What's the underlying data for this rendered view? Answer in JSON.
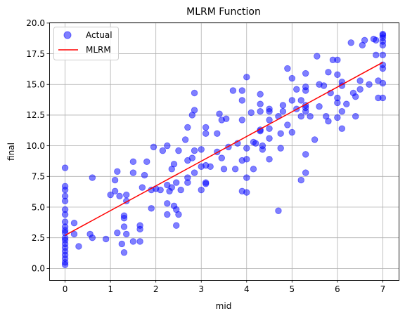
{
  "chart_data": {
    "type": "scatter",
    "title": "MLRM Function",
    "xlabel": "mid",
    "ylabel": "final",
    "xlim": [
      -0.35,
      7.35
    ],
    "ylim": [
      -0.95,
      20.05
    ],
    "xticks": [
      0,
      1,
      2,
      3,
      4,
      5,
      6,
      7
    ],
    "yticks": [
      0.0,
      2.5,
      5.0,
      7.5,
      10.0,
      12.5,
      15.0,
      17.5,
      20.0
    ],
    "xtick_labels": [
      "0",
      "1",
      "2",
      "3",
      "4",
      "5",
      "6",
      "7"
    ],
    "ytick_labels": [
      "0.0",
      "2.5",
      "5.0",
      "7.5",
      "10.0",
      "12.5",
      "15.0",
      "17.5",
      "20.0"
    ],
    "grid": true,
    "legend": {
      "placement": "top-left",
      "entries": [
        "Actual",
        "MLRM"
      ]
    },
    "series": [
      {
        "name": "Actual",
        "type": "scatter",
        "color": "#0000ff",
        "opacity": 0.5,
        "points": [
          [
            0,
            0.3
          ],
          [
            0,
            0.5
          ],
          [
            0,
            0.8
          ],
          [
            0,
            1.1
          ],
          [
            0,
            1.4
          ],
          [
            0,
            1.7
          ],
          [
            0,
            2.0
          ],
          [
            0,
            2.3
          ],
          [
            0,
            2.5
          ],
          [
            0,
            2.9
          ],
          [
            0,
            3.1
          ],
          [
            0,
            3.4
          ],
          [
            0,
            3.8
          ],
          [
            0,
            4.4
          ],
          [
            0,
            4.8
          ],
          [
            0,
            5.5
          ],
          [
            0,
            5.9
          ],
          [
            0,
            6.4
          ],
          [
            0,
            6.7
          ],
          [
            0,
            8.2
          ],
          [
            0.2,
            2.8
          ],
          [
            0.2,
            3.7
          ],
          [
            0.3,
            1.8
          ],
          [
            0.55,
            2.8
          ],
          [
            0.6,
            7.4
          ],
          [
            0.6,
            2.5
          ],
          [
            0.9,
            2.4
          ],
          [
            1.0,
            6.0
          ],
          [
            1.1,
            6.3
          ],
          [
            1.1,
            7.2
          ],
          [
            1.15,
            7.9
          ],
          [
            1.15,
            2.9
          ],
          [
            1.2,
            5.9
          ],
          [
            1.25,
            2.0
          ],
          [
            1.3,
            3.4
          ],
          [
            1.3,
            4.3
          ],
          [
            1.3,
            4.1
          ],
          [
            1.3,
            1.3
          ],
          [
            1.35,
            5.5
          ],
          [
            1.35,
            6.0
          ],
          [
            1.35,
            2.8
          ],
          [
            1.5,
            7.8
          ],
          [
            1.5,
            8.7
          ],
          [
            1.5,
            2.2
          ],
          [
            1.65,
            2.2
          ],
          [
            1.65,
            3.5
          ],
          [
            1.65,
            3.2
          ],
          [
            1.7,
            6.6
          ],
          [
            1.75,
            7.6
          ],
          [
            1.8,
            8.7
          ],
          [
            1.9,
            6.4
          ],
          [
            1.9,
            4.9
          ],
          [
            1.95,
            9.9
          ],
          [
            2.0,
            6.5
          ],
          [
            2.1,
            6.4
          ],
          [
            2.15,
            9.6
          ],
          [
            2.25,
            10.0
          ],
          [
            2.25,
            6.8
          ],
          [
            2.25,
            5.3
          ],
          [
            2.25,
            4.4
          ],
          [
            2.3,
            6.3
          ],
          [
            2.35,
            6.6
          ],
          [
            2.35,
            8.1
          ],
          [
            2.4,
            8.5
          ],
          [
            2.4,
            5.1
          ],
          [
            2.45,
            7.0
          ],
          [
            2.45,
            4.8
          ],
          [
            2.45,
            3.5
          ],
          [
            2.5,
            9.6
          ],
          [
            2.5,
            4.4
          ],
          [
            2.55,
            6.4
          ],
          [
            2.65,
            10.5
          ],
          [
            2.7,
            7.0
          ],
          [
            2.7,
            7.4
          ],
          [
            2.7,
            8.8
          ],
          [
            2.7,
            11.5
          ],
          [
            2.8,
            12.5
          ],
          [
            2.8,
            9.0
          ],
          [
            2.85,
            14.3
          ],
          [
            2.85,
            12.9
          ],
          [
            2.85,
            7.8
          ],
          [
            2.85,
            9.6
          ],
          [
            3.0,
            9.7
          ],
          [
            3.0,
            8.3
          ],
          [
            3.0,
            6.4
          ],
          [
            3.1,
            11.5
          ],
          [
            3.1,
            11.0
          ],
          [
            3.1,
            8.4
          ],
          [
            3.1,
            7.0
          ],
          [
            3.1,
            6.9
          ],
          [
            3.2,
            8.3
          ],
          [
            3.35,
            11.0
          ],
          [
            3.35,
            9.5
          ],
          [
            3.4,
            12.6
          ],
          [
            3.45,
            12.1
          ],
          [
            3.45,
            9.0
          ],
          [
            3.5,
            8.1
          ],
          [
            3.55,
            12.2
          ],
          [
            3.6,
            9.9
          ],
          [
            3.7,
            14.5
          ],
          [
            3.75,
            8.1
          ],
          [
            3.8,
            10.2
          ],
          [
            3.9,
            14.5
          ],
          [
            3.9,
            12.1
          ],
          [
            3.9,
            13.7
          ],
          [
            3.9,
            8.8
          ],
          [
            3.9,
            6.3
          ],
          [
            4.0,
            9.8
          ],
          [
            4.0,
            8.9
          ],
          [
            4.0,
            15.6
          ],
          [
            4.0,
            7.4
          ],
          [
            4.0,
            6.2
          ],
          [
            4.1,
            12.7
          ],
          [
            4.15,
            8.1
          ],
          [
            4.15,
            10.3
          ],
          [
            4.2,
            10.2
          ],
          [
            4.3,
            11.2
          ],
          [
            4.3,
            12.8
          ],
          [
            4.3,
            11.3
          ],
          [
            4.3,
            13.4
          ],
          [
            4.3,
            14.2
          ],
          [
            4.35,
            9.7
          ],
          [
            4.35,
            10.0
          ],
          [
            4.5,
            12.8
          ],
          [
            4.5,
            13.0
          ],
          [
            4.5,
            11.4
          ],
          [
            4.5,
            10.6
          ],
          [
            4.5,
            12.1
          ],
          [
            4.5,
            8.9
          ],
          [
            4.7,
            12.4
          ],
          [
            4.7,
            4.7
          ],
          [
            4.75,
            9.8
          ],
          [
            4.75,
            11.0
          ],
          [
            4.8,
            12.8
          ],
          [
            4.8,
            13.3
          ],
          [
            4.9,
            16.3
          ],
          [
            4.9,
            11.7
          ],
          [
            5.0,
            15.5
          ],
          [
            5.0,
            13.7
          ],
          [
            5.0,
            11.1
          ],
          [
            5.1,
            13.0
          ],
          [
            5.1,
            14.6
          ],
          [
            5.2,
            13.7
          ],
          [
            5.2,
            12.4
          ],
          [
            5.2,
            7.2
          ],
          [
            5.3,
            12.8
          ],
          [
            5.3,
            13.1
          ],
          [
            5.3,
            13.3
          ],
          [
            5.3,
            14.5
          ],
          [
            5.3,
            14.8
          ],
          [
            5.3,
            15.9
          ],
          [
            5.3,
            9.3
          ],
          [
            5.3,
            7.8
          ],
          [
            5.4,
            12.4
          ],
          [
            5.5,
            10.5
          ],
          [
            5.55,
            17.3
          ],
          [
            5.6,
            15.0
          ],
          [
            5.6,
            13.2
          ],
          [
            5.7,
            14.9
          ],
          [
            5.75,
            12.4
          ],
          [
            5.8,
            12.0
          ],
          [
            5.8,
            16.0
          ],
          [
            5.85,
            14.3
          ],
          [
            5.9,
            17.0
          ],
          [
            6.0,
            17.0
          ],
          [
            6.0,
            15.8
          ],
          [
            6.0,
            13.5
          ],
          [
            6.0,
            13.9
          ],
          [
            6.0,
            12.3
          ],
          [
            6.1,
            14.9
          ],
          [
            6.1,
            15.2
          ],
          [
            6.1,
            12.8
          ],
          [
            6.1,
            11.4
          ],
          [
            6.2,
            13.4
          ],
          [
            6.3,
            18.4
          ],
          [
            6.35,
            14.3
          ],
          [
            6.4,
            14.0
          ],
          [
            6.4,
            12.4
          ],
          [
            6.5,
            15.3
          ],
          [
            6.5,
            14.6
          ],
          [
            6.55,
            18.2
          ],
          [
            6.6,
            18.6
          ],
          [
            6.7,
            15.0
          ],
          [
            6.8,
            18.7
          ],
          [
            6.85,
            18.6
          ],
          [
            6.85,
            17.4
          ],
          [
            6.9,
            15.3
          ],
          [
            6.9,
            13.9
          ],
          [
            7.0,
            19.0
          ],
          [
            7.0,
            18.5
          ],
          [
            7.0,
            18.2
          ],
          [
            7.0,
            17.4
          ],
          [
            7.0,
            16.6
          ],
          [
            7.0,
            16.3
          ],
          [
            7.0,
            15.1
          ],
          [
            7.0,
            13.9
          ],
          [
            7.0,
            19.1
          ],
          [
            7.0,
            18.8
          ]
        ]
      },
      {
        "name": "MLRM",
        "type": "line",
        "color": "#ff0000",
        "x": [
          0,
          7
        ],
        "y": [
          2.7,
          16.8
        ]
      }
    ]
  }
}
